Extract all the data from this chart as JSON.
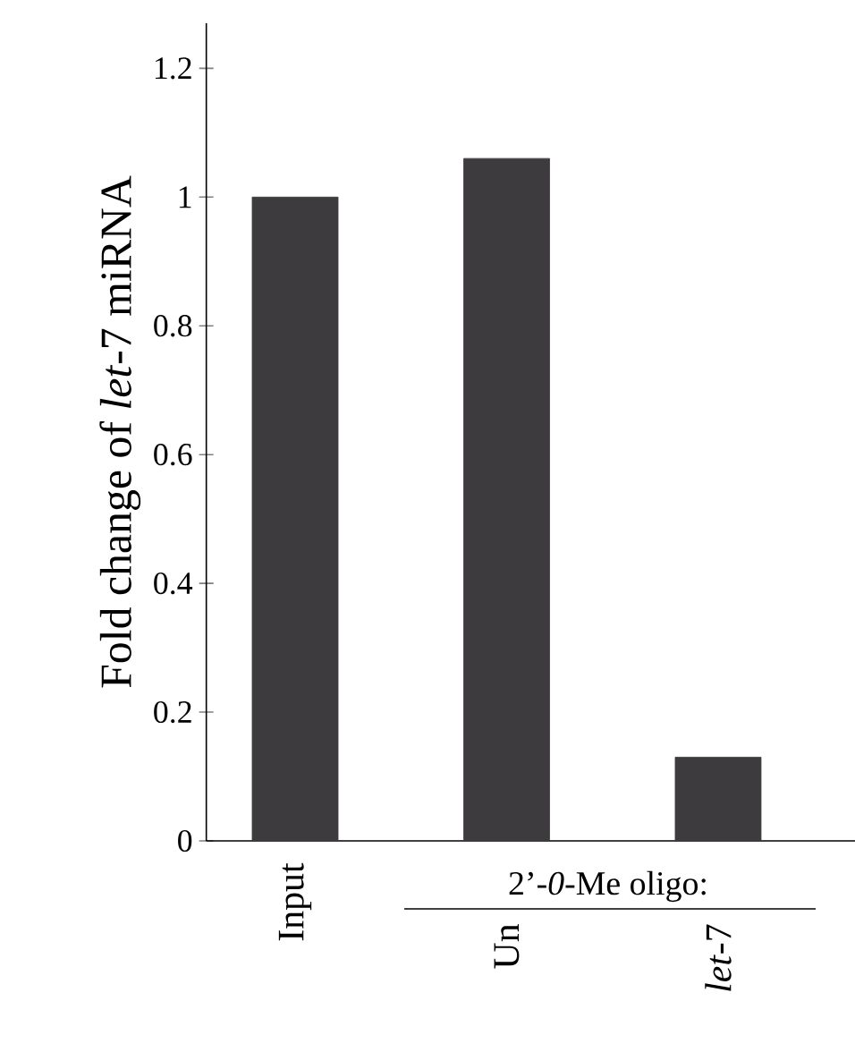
{
  "chart_data": {
    "type": "bar",
    "categories": [
      "Input",
      "Un",
      "*let*-7"
    ],
    "values": [
      1.0,
      1.06,
      0.13
    ],
    "color": "#3d3b3e",
    "ylabel": "Fold change of *let*-7 miRNA",
    "ylim": [
      0,
      1.27
    ],
    "yticks": [
      0,
      0.2,
      0.4,
      0.6,
      0.8,
      1,
      1.2
    ],
    "annotations": [
      "2’-*0*-Me oligo:"
    ],
    "grid": false
  }
}
